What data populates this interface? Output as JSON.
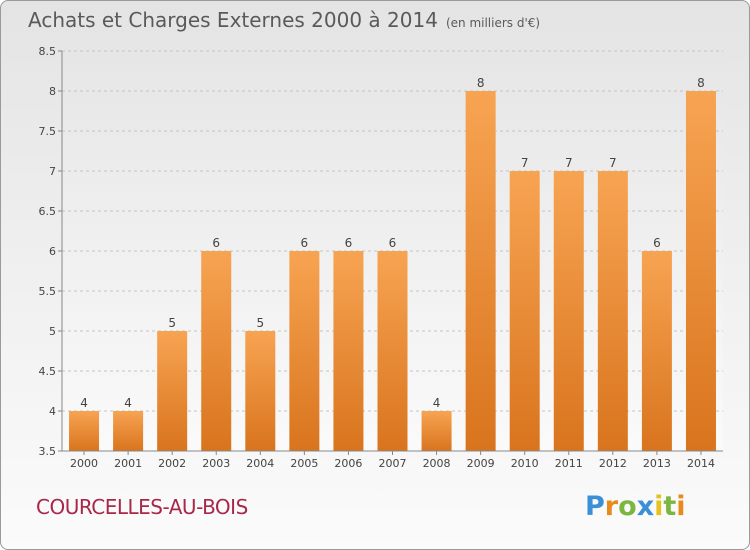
{
  "header": {
    "title": "Achats et Charges Externes 2000 à 2014",
    "subtitle": "(en milliers d'€)"
  },
  "footer": {
    "commune": "COURCELLES-AU-BOIS",
    "logo_text": "Proxiti"
  },
  "colors": {
    "bar_top": "#f7a452",
    "bar_bottom": "#d9741e",
    "commune_text": "#a8284a"
  },
  "chart_data": {
    "type": "bar",
    "title": "Achats et Charges Externes 2000 à 2014",
    "subtitle": "(en milliers d'€)",
    "xlabel": "",
    "ylabel": "",
    "categories": [
      "2000",
      "2001",
      "2002",
      "2003",
      "2004",
      "2005",
      "2006",
      "2007",
      "2008",
      "2009",
      "2010",
      "2011",
      "2012",
      "2013",
      "2014"
    ],
    "values": [
      4,
      4,
      5,
      6,
      5,
      6,
      6,
      6,
      4,
      8,
      7,
      7,
      7,
      6,
      8
    ],
    "data_labels": [
      "4",
      "4",
      "5",
      "6",
      "5",
      "6",
      "6",
      "6",
      "4",
      "8",
      "7",
      "7",
      "7",
      "6",
      "8"
    ],
    "ylim": [
      3.5,
      8.5
    ],
    "yticks": [
      3.5,
      4,
      4.5,
      5,
      5.5,
      6,
      6.5,
      7,
      7.5,
      8,
      8.5
    ],
    "ytick_labels": [
      "3.5",
      "4",
      "4.5",
      "5",
      "5.5",
      "6",
      "6.5",
      "7",
      "7.5",
      "8",
      "8.5"
    ],
    "grid": "horizontal-dashed",
    "legend": "none"
  }
}
